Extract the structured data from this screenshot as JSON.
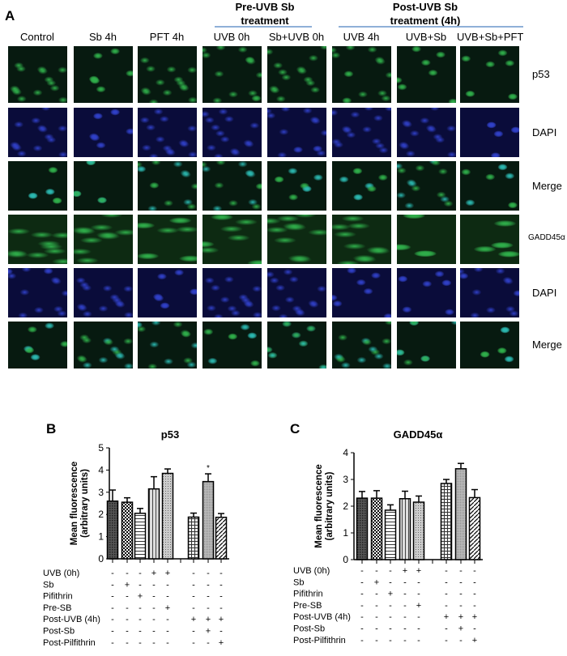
{
  "panel_a": {
    "label": "A",
    "group_headers": [
      {
        "label": "Pre-UVB Sb\ntreatment"
      },
      {
        "label": "Post-UVB Sb\ntreatment (4h)"
      }
    ],
    "columns": [
      "Control",
      "Sb 4h",
      "PFT 4h",
      "UVB 0h",
      "Sb+UVB 0h",
      "UVB 4h",
      "UVB+Sb",
      "UVB+Sb+PFT"
    ],
    "rows": [
      {
        "label": "p53",
        "stain": "green"
      },
      {
        "label": "DAPI",
        "stain": "blue"
      },
      {
        "label": "Merge",
        "stain": "merge"
      },
      {
        "label": "GADD45α",
        "stain": "green"
      },
      {
        "label": "DAPI",
        "stain": "blue"
      },
      {
        "label": "Merge",
        "stain": "merge"
      }
    ],
    "colors": {
      "green": "#2fae4a",
      "blue": "#3040c8",
      "background": "#0a0f20",
      "group_line": "#8fb0d8"
    }
  },
  "chart_data": [
    {
      "panel": "B",
      "type": "bar",
      "title": "p53",
      "ylabel": "Mean fluorescence\n(arbitrary units)",
      "ylim": [
        0,
        5
      ],
      "yticks": [
        0,
        1,
        2,
        3,
        4,
        5
      ],
      "values": [
        2.6,
        2.55,
        2.05,
        3.15,
        3.85,
        1.88,
        3.48,
        1.87
      ],
      "errors": [
        0.5,
        0.2,
        0.22,
        0.55,
        0.2,
        0.18,
        0.35,
        0.17
      ],
      "annotations": [
        {
          "bar": 6,
          "text": "*"
        }
      ],
      "patterns": [
        "dense-check",
        "checker",
        "horizontal",
        "vertical",
        "dots",
        "grid",
        "fine-dots",
        "diagonal"
      ],
      "conditions": [
        {
          "label": "UVB (0h)",
          "marks": [
            "-",
            "-",
            "-",
            "+",
            "+",
            "-",
            "-",
            "-"
          ]
        },
        {
          "label": "Sb",
          "marks": [
            "-",
            "+",
            "-",
            "-",
            "-",
            "-",
            "-",
            "-"
          ]
        },
        {
          "label": "Pifithrin",
          "marks": [
            "-",
            "-",
            "+",
            "-",
            "-",
            "-",
            "-",
            "-"
          ]
        },
        {
          "label": "Pre-SB",
          "marks": [
            "-",
            "-",
            "-",
            "-",
            "+",
            "-",
            "-",
            "-"
          ]
        },
        {
          "label": "Post-UVB (4h)",
          "marks": [
            "-",
            "-",
            "-",
            "-",
            "-",
            "+",
            "+",
            "+"
          ]
        },
        {
          "label": "Post-Sb",
          "marks": [
            "-",
            "-",
            "-",
            "-",
            "-",
            "-",
            "+",
            "-"
          ]
        },
        {
          "label": "Post-Pilfithrin",
          "marks": [
            "-",
            "-",
            "-",
            "-",
            "-",
            "-",
            "-",
            "+"
          ]
        }
      ]
    },
    {
      "panel": "C",
      "type": "bar",
      "title": "GADD45α",
      "ylabel": "Mean fluorescence\n(arbitrary units)",
      "ylim": [
        0,
        4
      ],
      "yticks": [
        0,
        1,
        2,
        3,
        4
      ],
      "values": [
        2.3,
        2.3,
        1.85,
        2.28,
        2.15,
        2.85,
        3.4,
        2.32
      ],
      "errors": [
        0.25,
        0.28,
        0.2,
        0.28,
        0.23,
        0.15,
        0.2,
        0.3
      ],
      "annotations": [],
      "patterns": [
        "dense-check",
        "checker",
        "horizontal",
        "vertical",
        "dots",
        "grid",
        "fine-dots",
        "diagonal"
      ],
      "conditions": [
        {
          "label": "UVB (0h)",
          "marks": [
            "-",
            "-",
            "-",
            "+",
            "+",
            "-",
            "-",
            "-"
          ]
        },
        {
          "label": "Sb",
          "marks": [
            "-",
            "+",
            "-",
            "-",
            "-",
            "-",
            "-",
            "-"
          ]
        },
        {
          "label": "Pifithrin",
          "marks": [
            "-",
            "-",
            "+",
            "-",
            "-",
            "-",
            "-",
            "-"
          ]
        },
        {
          "label": "Pre-SB",
          "marks": [
            "-",
            "-",
            "-",
            "-",
            "+",
            "-",
            "-",
            "-"
          ]
        },
        {
          "label": "Post-UVB (4h)",
          "marks": [
            "-",
            "-",
            "-",
            "-",
            "-",
            "+",
            "+",
            "+"
          ]
        },
        {
          "label": "Post-Sb",
          "marks": [
            "-",
            "-",
            "-",
            "-",
            "-",
            "-",
            "+",
            "-"
          ]
        },
        {
          "label": "Post-Pilfithrin",
          "marks": [
            "-",
            "-",
            "-",
            "-",
            "-",
            "-",
            "-",
            "+"
          ]
        }
      ]
    }
  ]
}
